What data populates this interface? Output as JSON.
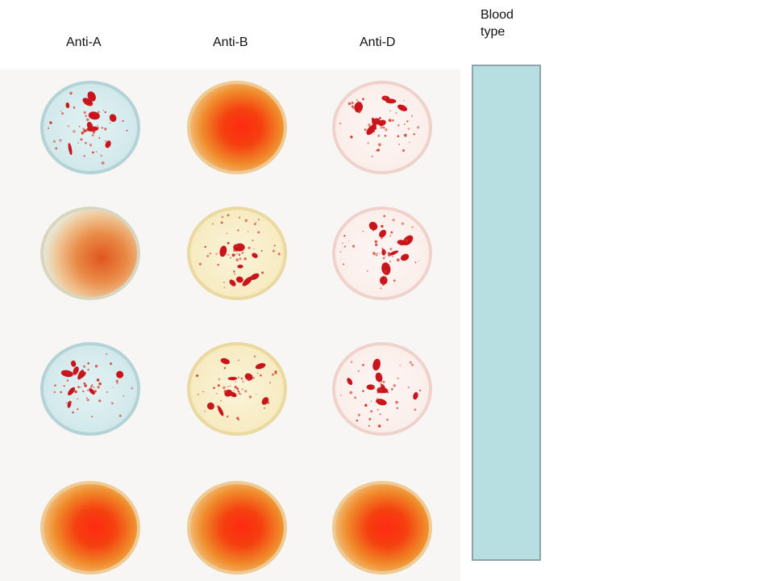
{
  "columns": [
    {
      "label": "Anti-A"
    },
    {
      "label": "Anti-B"
    },
    {
      "label": "Anti-D"
    }
  ],
  "blood_type_label": {
    "line1": "Blood",
    "line2": "type"
  },
  "samples": [
    {
      "row": 1,
      "wells": [
        {
          "reagent": "Anti-A",
          "result": "agglutinated",
          "tint": "blue"
        },
        {
          "reagent": "Anti-B",
          "result": "smooth",
          "tint": "orange"
        },
        {
          "reagent": "Anti-D",
          "result": "agglutinated",
          "tint": "pink"
        }
      ]
    },
    {
      "row": 2,
      "wells": [
        {
          "reagent": "Anti-A",
          "result": "smooth",
          "tint": "orange-pale"
        },
        {
          "reagent": "Anti-B",
          "result": "agglutinated",
          "tint": "yellow"
        },
        {
          "reagent": "Anti-D",
          "result": "agglutinated",
          "tint": "pink"
        }
      ]
    },
    {
      "row": 3,
      "wells": [
        {
          "reagent": "Anti-A",
          "result": "agglutinated",
          "tint": "blue"
        },
        {
          "reagent": "Anti-B",
          "result": "agglutinated",
          "tint": "yellow"
        },
        {
          "reagent": "Anti-D",
          "result": "agglutinated",
          "tint": "pink"
        }
      ]
    },
    {
      "row": 4,
      "wells": [
        {
          "reagent": "Anti-A",
          "result": "smooth",
          "tint": "orange"
        },
        {
          "reagent": "Anti-B",
          "result": "smooth",
          "tint": "orange"
        },
        {
          "reagent": "Anti-D",
          "result": "smooth",
          "tint": "orange"
        }
      ]
    }
  ],
  "colors": {
    "photo_background": "#f7f6f4",
    "answer_box_fill": "#b7dfe2",
    "answer_box_border": "#8fa3ad",
    "clump_red": "#c8141a"
  }
}
